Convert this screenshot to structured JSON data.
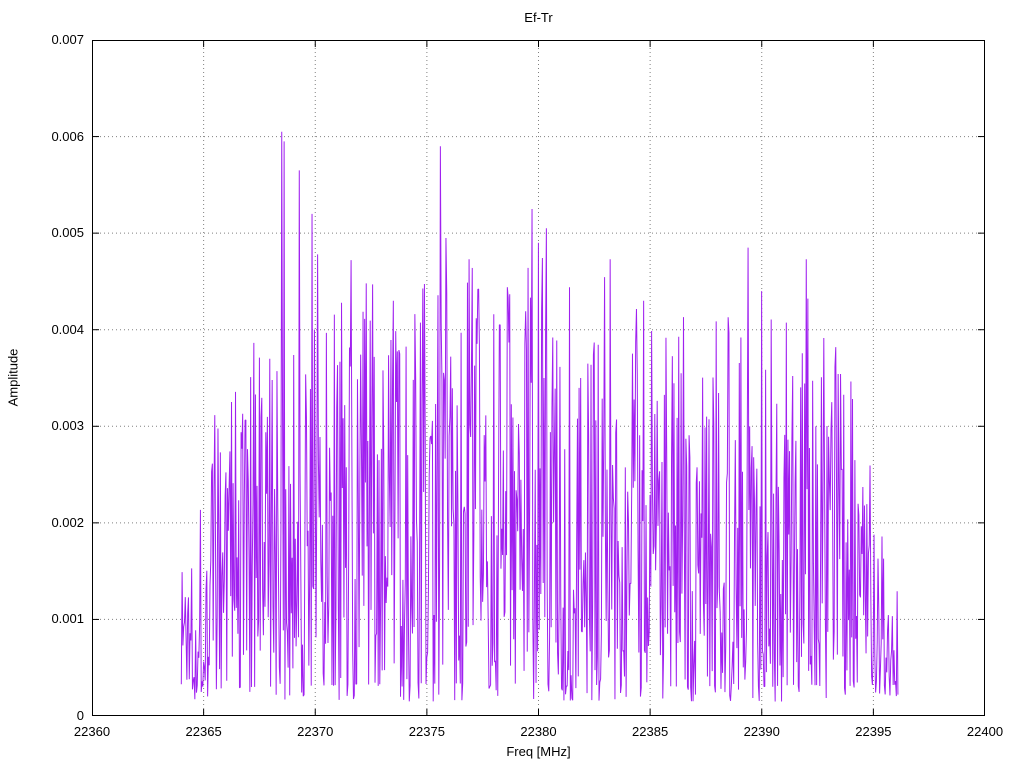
{
  "chart_data": {
    "type": "line",
    "title": "Ef-Tr",
    "xlabel": "Freq [MHz]",
    "ylabel": "Amplitude",
    "xlim": [
      22360,
      22400
    ],
    "ylim": [
      0,
      0.007
    ],
    "x_ticks": [
      22360,
      22365,
      22370,
      22375,
      22380,
      22385,
      22390,
      22395,
      22400
    ],
    "y_ticks": [
      0,
      0.001,
      0.002,
      0.003,
      0.004,
      0.005,
      0.006,
      0.007
    ],
    "grid": true,
    "legend": "none",
    "line_color": "#a020f0",
    "background": "#ffffff",
    "data_x_range": [
      22364.0,
      22396.1
    ],
    "num_points": 900,
    "noise_seed": 1337,
    "noise_floor": 0.00015,
    "envelope": [
      [
        22364.0,
        0.0019
      ],
      [
        22365.0,
        0.0027
      ],
      [
        22366.0,
        0.0038
      ],
      [
        22367.0,
        0.0039
      ],
      [
        22368.0,
        0.004
      ],
      [
        22369.0,
        0.0046
      ],
      [
        22370.0,
        0.0042
      ],
      [
        22371.0,
        0.0045
      ],
      [
        22372.0,
        0.0047
      ],
      [
        22373.0,
        0.0043
      ],
      [
        22374.0,
        0.0041
      ],
      [
        22375.0,
        0.0047
      ],
      [
        22376.0,
        0.0049
      ],
      [
        22377.0,
        0.0047
      ],
      [
        22378.0,
        0.0044
      ],
      [
        22379.0,
        0.0048
      ],
      [
        22380.0,
        0.005
      ],
      [
        22381.0,
        0.0042
      ],
      [
        22382.0,
        0.004
      ],
      [
        22383.0,
        0.0047
      ],
      [
        22384.0,
        0.0043
      ],
      [
        22385.0,
        0.0041
      ],
      [
        22386.0,
        0.0041
      ],
      [
        22387.0,
        0.0038
      ],
      [
        22388.0,
        0.0043
      ],
      [
        22389.0,
        0.0048
      ],
      [
        22390.0,
        0.004
      ],
      [
        22391.0,
        0.0043
      ],
      [
        22392.0,
        0.0047
      ],
      [
        22393.0,
        0.0038
      ],
      [
        22394.0,
        0.0035
      ],
      [
        22395.0,
        0.0026
      ],
      [
        22396.1,
        0.0013
      ]
    ],
    "peaks": [
      [
        22368.5,
        0.00605
      ],
      [
        22368.62,
        0.00595
      ],
      [
        22369.3,
        0.00565
      ],
      [
        22369.85,
        0.0052
      ],
      [
        22370.1,
        0.00478
      ],
      [
        22371.6,
        0.00472
      ],
      [
        22372.3,
        0.00448
      ],
      [
        22373.5,
        0.0043
      ],
      [
        22375.6,
        0.0059
      ],
      [
        22375.85,
        0.00495
      ],
      [
        22376.9,
        0.00473
      ],
      [
        22378.6,
        0.00444
      ],
      [
        22379.7,
        0.00525
      ],
      [
        22380.0,
        0.0049
      ],
      [
        22380.35,
        0.00505
      ],
      [
        22381.4,
        0.00444
      ],
      [
        22383.2,
        0.00473
      ],
      [
        22384.7,
        0.0043
      ],
      [
        22386.5,
        0.00413
      ],
      [
        22389.4,
        0.00485
      ],
      [
        22390.0,
        0.0044
      ],
      [
        22392.0,
        0.00473
      ],
      [
        22393.3,
        0.00382
      ]
    ]
  }
}
